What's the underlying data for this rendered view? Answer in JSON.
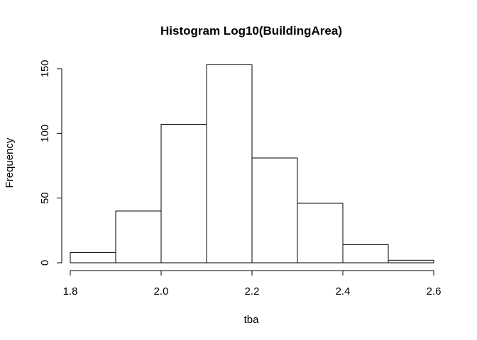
{
  "chart_data": {
    "type": "bar",
    "title": "Histogram Log10(BuildingArea)",
    "xlabel": "tba",
    "ylabel": "Frequency",
    "bin_edges": [
      1.8,
      1.9,
      2.0,
      2.1,
      2.2,
      2.3,
      2.4,
      2.5,
      2.6
    ],
    "values": [
      8,
      40,
      107,
      153,
      81,
      46,
      14,
      2
    ],
    "xlim": [
      1.8,
      2.6
    ],
    "ylim": [
      0,
      150
    ],
    "x_ticks": [
      "1.8",
      "2.0",
      "2.2",
      "2.4",
      "2.6"
    ],
    "y_ticks": [
      "0",
      "50",
      "100",
      "150"
    ],
    "grid": false,
    "legend": "none"
  }
}
